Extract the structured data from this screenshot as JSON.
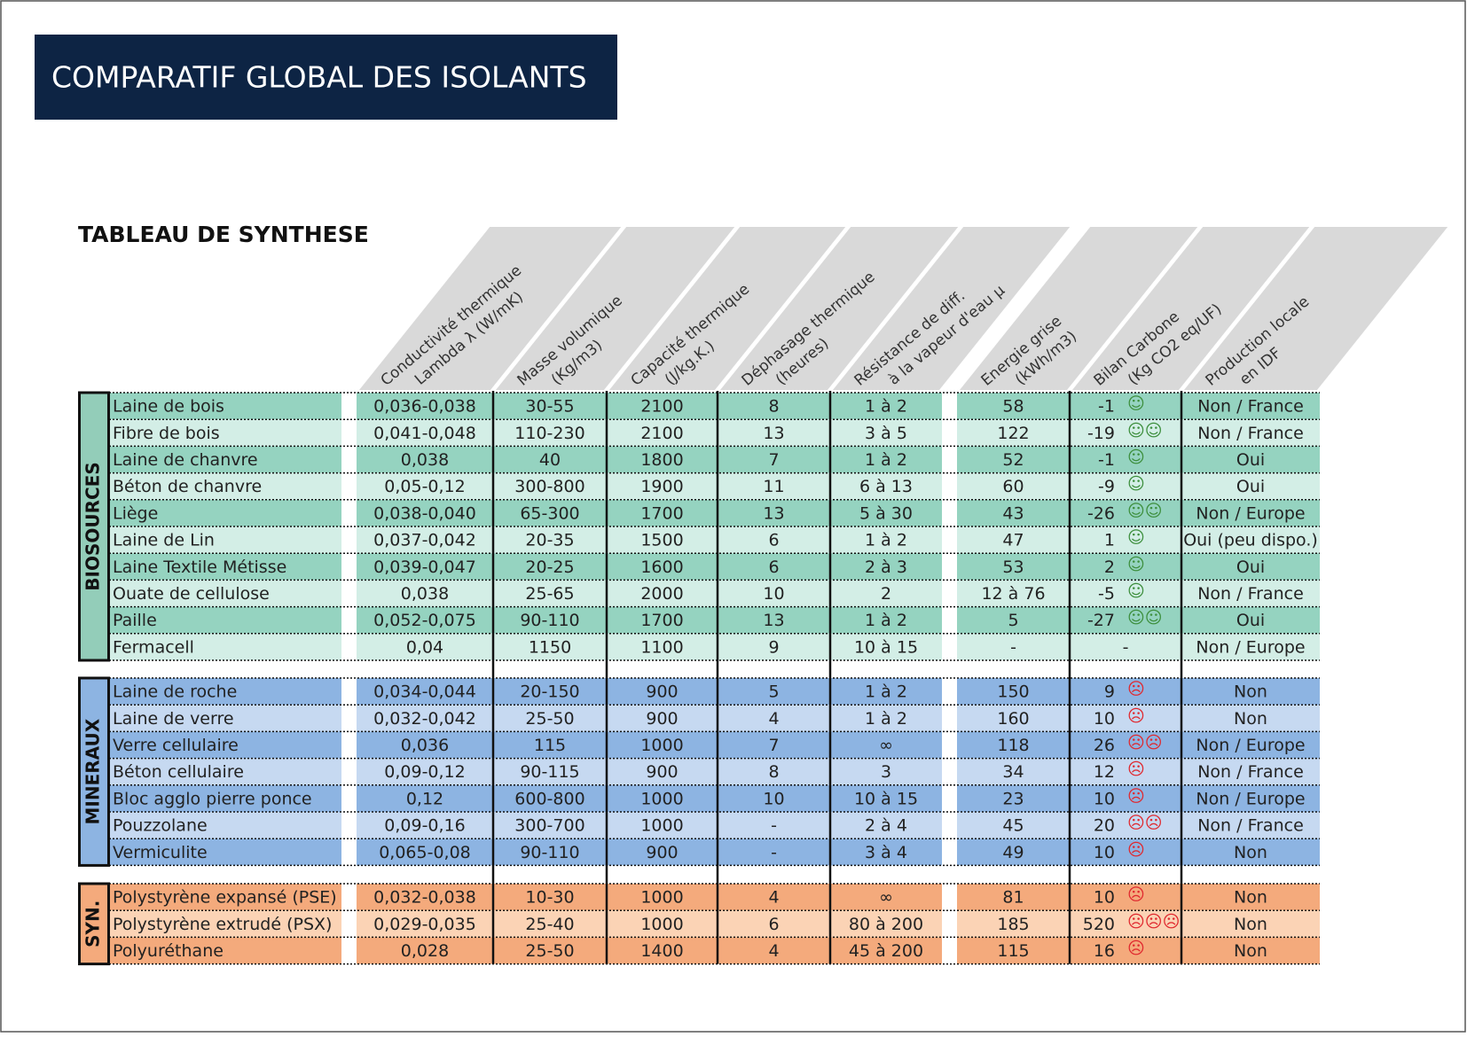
{
  "header": {
    "title": "COMPARATIF GLOBAL DES ISOLANTS",
    "subtitle": "TABLEAU DE SYNTHESE"
  },
  "columns": [
    [
      "Conductivité thermique",
      "Lambda λ (W/mK)"
    ],
    [
      "Masse volumique",
      "(Kg/m3)"
    ],
    [
      "Capacité thermique",
      "(J/kg.K.)"
    ],
    [
      "Déphasage thermique",
      "(heures)"
    ],
    [
      "Résistance de diff.",
      "à la vapeur d'eau µ"
    ],
    [
      "Energie grise",
      "(kWh/m3)"
    ],
    [
      "Bilan Carbone",
      "(Kg CO2 eq/UF)"
    ],
    [
      "Production locale",
      "en IDF"
    ]
  ],
  "groups": [
    {
      "label": "BIOSOURCES",
      "rows": [
        {
          "name": "Laine de bois",
          "cells": [
            "0,036-0,038",
            "30-55",
            "2100",
            "8",
            "1 à 2",
            "58",
            "-1",
            "Non / France"
          ],
          "icons": "☺"
        },
        {
          "name": "Fibre de bois",
          "cells": [
            "0,041-0,048",
            "110-230",
            "2100",
            "13",
            "3 à 5",
            "122",
            "-19",
            "Non / France"
          ],
          "icons": "☺☺"
        },
        {
          "name": "Laine de chanvre",
          "cells": [
            "0,038",
            "40",
            "1800",
            "7",
            "1 à 2",
            "52",
            "-1",
            "Oui"
          ],
          "icons": "☺"
        },
        {
          "name": "Béton de chanvre",
          "cells": [
            "0,05-0,12",
            "300-800",
            "1900",
            "11",
            "6 à 13",
            "60",
            "-9",
            "Oui"
          ],
          "icons": "☺"
        },
        {
          "name": "Liège",
          "cells": [
            "0,038-0,040",
            "65-300",
            "1700",
            "13",
            "5 à 30",
            "43",
            "-26",
            "Non / Europe"
          ],
          "icons": "☺☺"
        },
        {
          "name": "Laine de Lin",
          "cells": [
            "0,037-0,042",
            "20-35",
            "1500",
            "6",
            "1 à 2",
            "47",
            "1",
            "Oui (peu dispo.)"
          ],
          "icons": "☺"
        },
        {
          "name": "Laine Textile Métisse",
          "cells": [
            "0,039-0,047",
            "20-25",
            "1600",
            "6",
            "2 à 3",
            "53",
            "2",
            "Oui"
          ],
          "icons": "☺"
        },
        {
          "name": "Ouate de cellulose",
          "cells": [
            "0,038",
            "25-65",
            "2000",
            "10",
            "2",
            "12 à 76",
            "-5",
            "Non / France"
          ],
          "icons": "☺"
        },
        {
          "name": "Paille",
          "cells": [
            "0,052-0,075",
            "90-110",
            "1700",
            "13",
            "1 à 2",
            "5",
            "-27",
            "Oui"
          ],
          "icons": "☺☺"
        },
        {
          "name": "Fermacell",
          "cells": [
            "0,04",
            "1150",
            "1100",
            "9",
            "10 à 15",
            "-",
            "-",
            "Non / Europe"
          ]
        }
      ]
    },
    {
      "label": "MINERAUX",
      "rows": [
        {
          "name": "Laine de roche",
          "cells": [
            "0,034-0,044",
            "20-150",
            "900",
            "5",
            "1 à 2",
            "150",
            "9",
            "Non"
          ],
          "icons": "☹"
        },
        {
          "name": "Laine de verre",
          "cells": [
            "0,032-0,042",
            "25-50",
            "900",
            "4",
            "1 à 2",
            "160",
            "10",
            "Non"
          ],
          "icons": "☹"
        },
        {
          "name": "Verre cellulaire",
          "cells": [
            "0,036",
            "115",
            "1000",
            "7",
            "∞",
            "118",
            "26",
            "Non / Europe"
          ],
          "icons": "☹☹"
        },
        {
          "name": "Béton cellulaire",
          "cells": [
            "0,09-0,12",
            "90-115",
            "900",
            "8",
            "3",
            "34",
            "12",
            "Non / France"
          ],
          "icons": "☹"
        },
        {
          "name": "Bloc agglo pierre ponce",
          "cells": [
            "0,12",
            "600-800",
            "1000",
            "10",
            "10 à 15",
            "23",
            "10",
            "Non / Europe"
          ],
          "icons": "☹"
        },
        {
          "name": "Pouzzolane",
          "cells": [
            "0,09-0,16",
            "300-700",
            "1000",
            "-",
            "2 à 4",
            "45",
            "20",
            "Non / France"
          ],
          "icons": "☹☹"
        },
        {
          "name": "Vermiculite",
          "cells": [
            "0,065-0,08",
            "90-110",
            "900",
            "-",
            "3 à 4",
            "49",
            "10",
            "Non"
          ],
          "icons": "☹"
        }
      ]
    },
    {
      "label": "SYN.",
      "rows": [
        {
          "name": "Polystyrène expansé (PSE)",
          "cells": [
            "0,032-0,038",
            "10-30",
            "1000",
            "4",
            "∞",
            "81",
            "10",
            "Non"
          ],
          "icons": "☹"
        },
        {
          "name": "Polystyrène extrudé (PSX)",
          "cells": [
            "0,029-0,035",
            "25-40",
            "1000",
            "6",
            "80 à 200",
            "185",
            "520",
            "Non"
          ],
          "icons": "☹☹☹"
        },
        {
          "name": "Polyuréthane",
          "cells": [
            "0,028",
            "25-50",
            "1400",
            "4",
            "45 à 200",
            "115",
            "16",
            "Non"
          ],
          "icons": "☹"
        }
      ]
    }
  ]
}
